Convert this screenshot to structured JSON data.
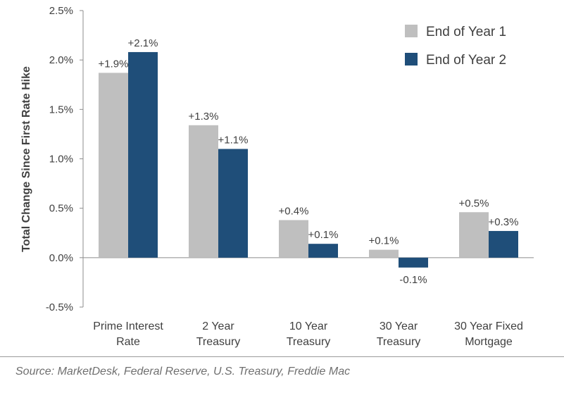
{
  "chart_data": {
    "type": "bar",
    "ylabel": "Total Change Since First Rate Hike",
    "ylim": [
      -0.5,
      2.5
    ],
    "yticks": [
      "-0.5%",
      "0.0%",
      "0.5%",
      "1.0%",
      "1.5%",
      "2.0%",
      "2.5%"
    ],
    "ytick_values": [
      -0.5,
      0.0,
      0.5,
      1.0,
      1.5,
      2.0,
      2.5
    ],
    "categories": [
      [
        "Prime Interest",
        "Rate"
      ],
      [
        "2 Year",
        "Treasury"
      ],
      [
        "10 Year",
        "Treasury"
      ],
      [
        "30 Year",
        "Treasury"
      ],
      [
        "30 Year Fixed",
        "Mortgage"
      ]
    ],
    "series": [
      {
        "name": "End of Year 1",
        "color": "#bfbfbf",
        "values": [
          1.87,
          1.34,
          0.38,
          0.08,
          0.46
        ],
        "labels": [
          "+1.9%",
          "+1.3%",
          "+0.4%",
          "+0.1%",
          "+0.5%"
        ]
      },
      {
        "name": "End of Year 2",
        "color": "#1f4e79",
        "values": [
          2.08,
          1.1,
          0.14,
          -0.1,
          0.27
        ],
        "labels": [
          "+2.1%",
          "+1.1%",
          "+0.1%",
          "-0.1%",
          "+0.3%"
        ]
      }
    ],
    "legend_position": "top-right",
    "grid": false
  },
  "source": "Source: MarketDesk, Federal Reserve, U.S. Treasury, Freddie Mac"
}
